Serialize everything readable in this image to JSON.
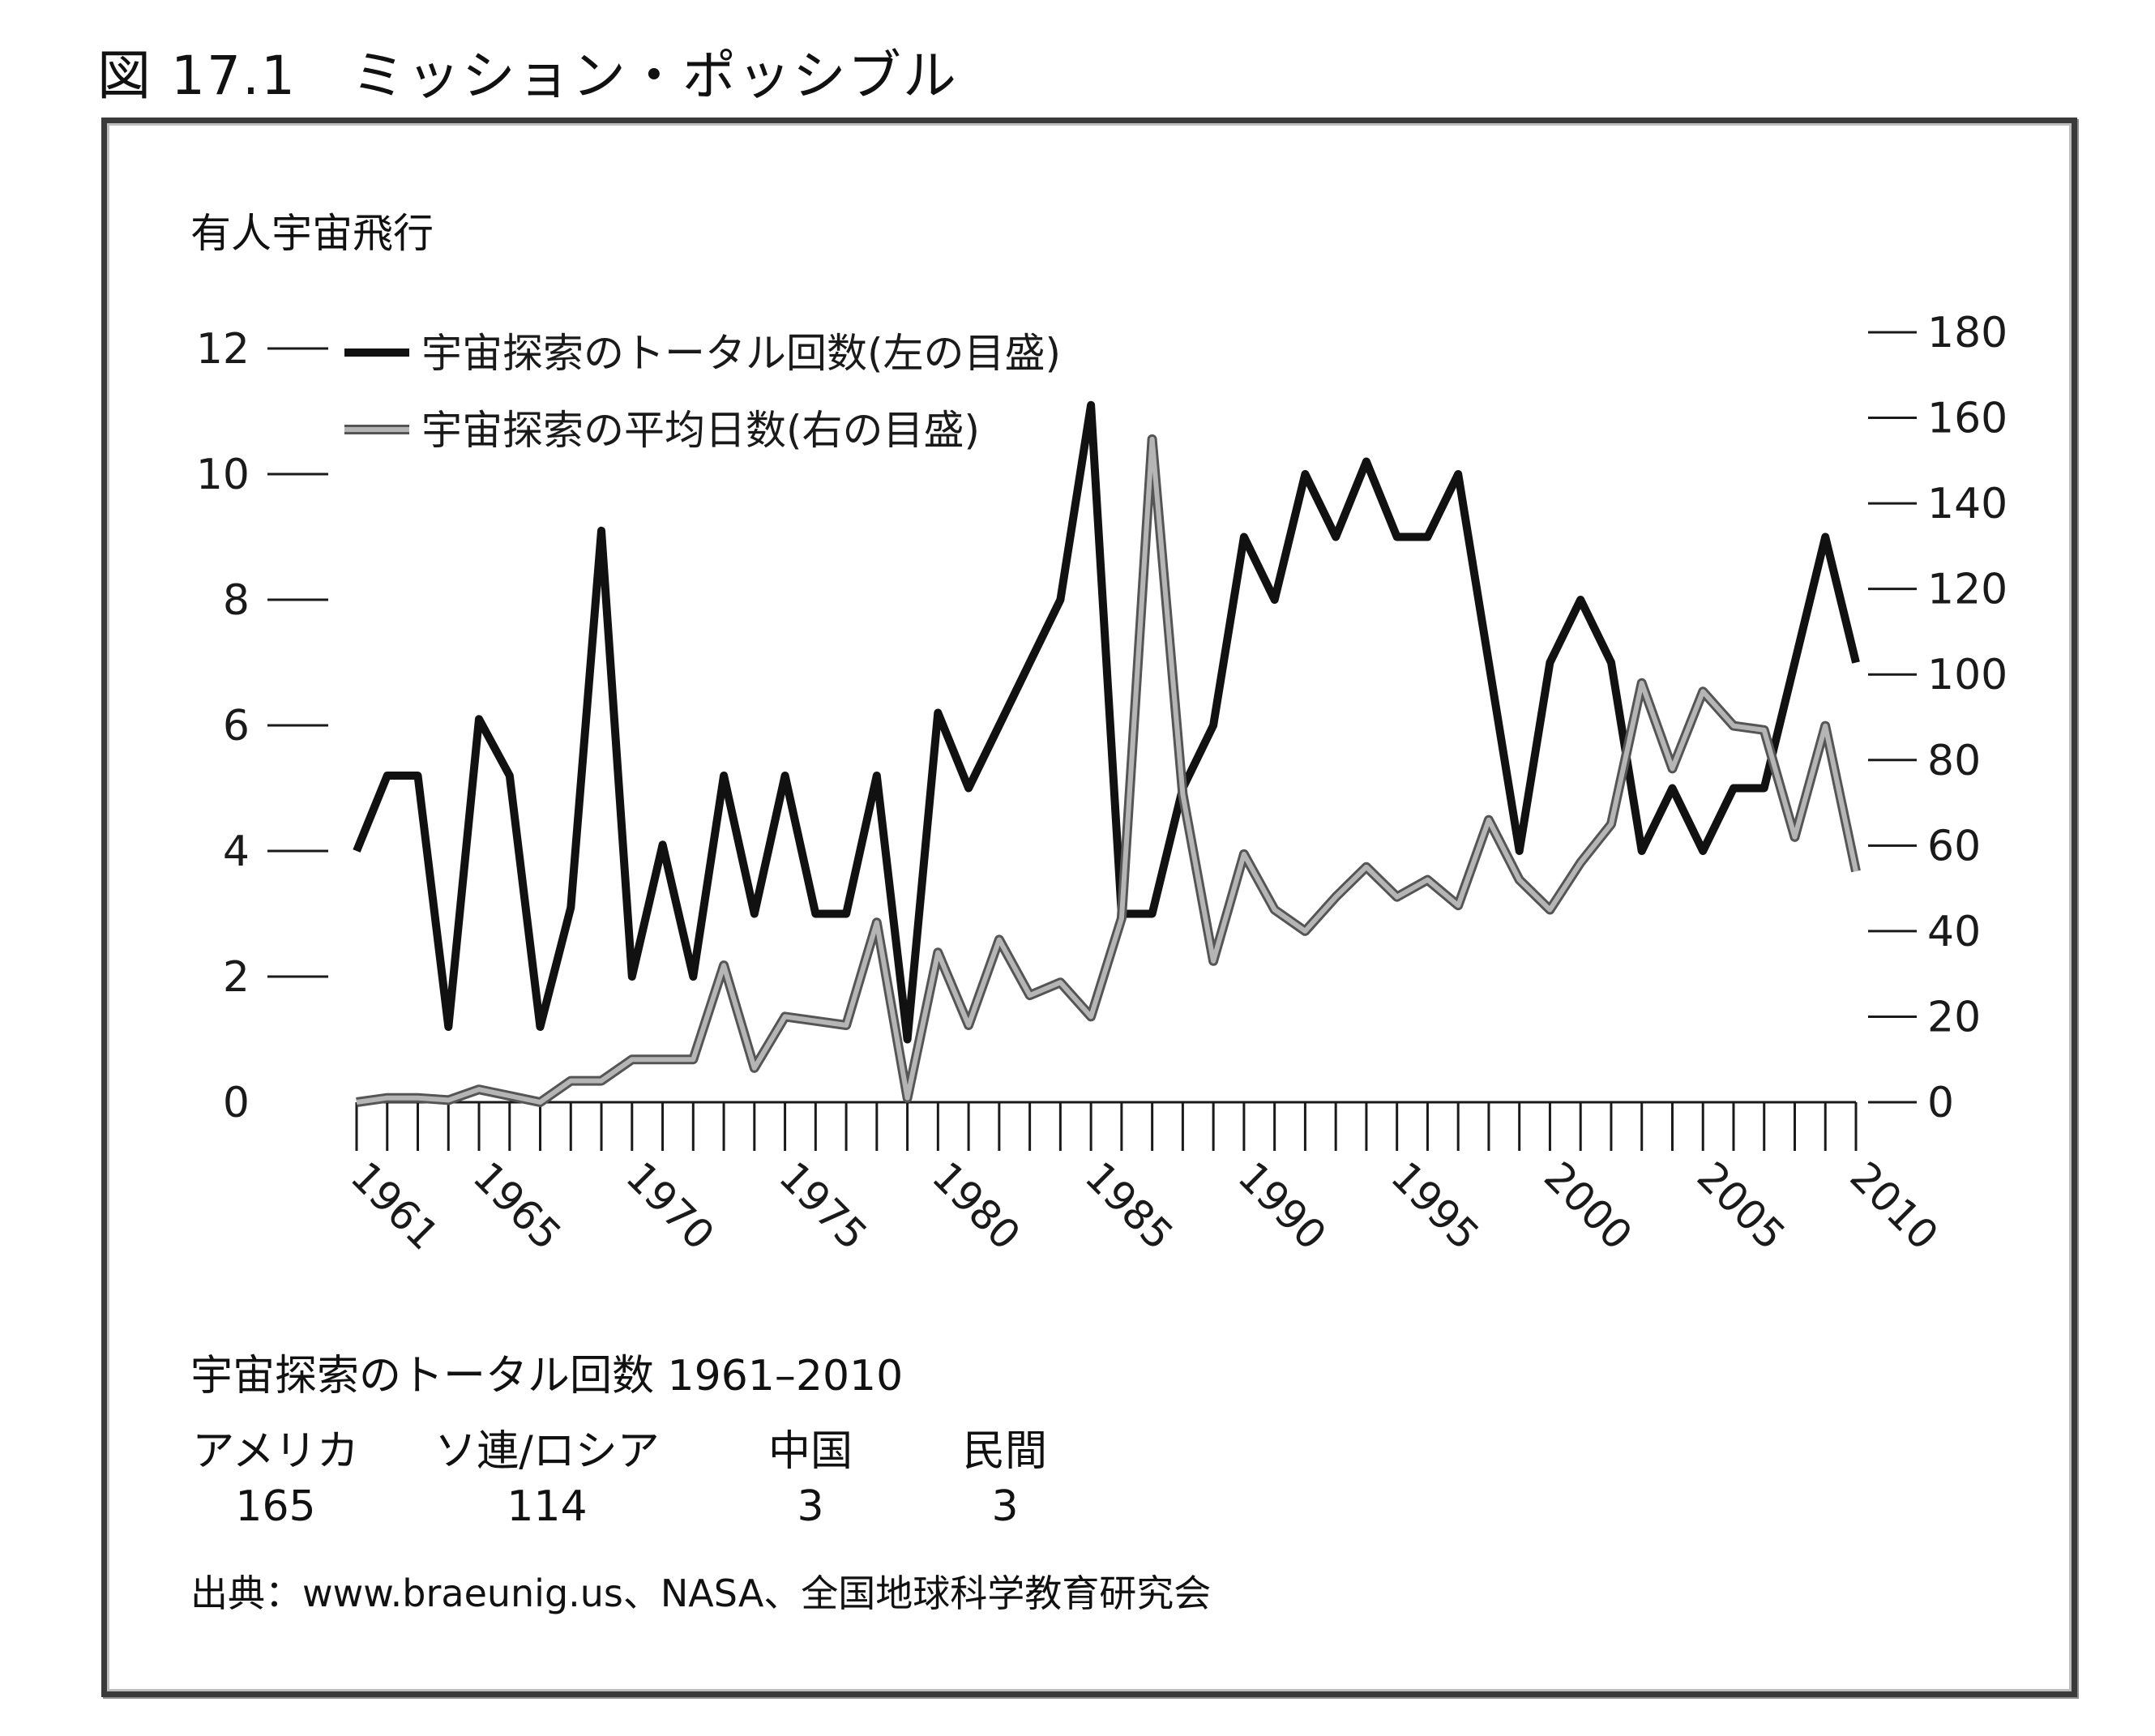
{
  "figure": {
    "title": "図 17.1　ミッション・ポッシブル",
    "heading": "有人宇宙飛行"
  },
  "chart_data": {
    "type": "line",
    "title": "有人宇宙飛行",
    "x": [
      1961,
      1962,
      1963,
      1964,
      1965,
      1966,
      1967,
      1968,
      1969,
      1970,
      1971,
      1972,
      1973,
      1974,
      1975,
      1976,
      1977,
      1978,
      1979,
      1980,
      1981,
      1982,
      1983,
      1984,
      1985,
      1986,
      1987,
      1988,
      1989,
      1990,
      1991,
      1992,
      1993,
      1994,
      1995,
      1996,
      1997,
      1998,
      1999,
      2000,
      2001,
      2002,
      2003,
      2004,
      2005,
      2006,
      2007,
      2008,
      2009,
      2010
    ],
    "x_tick_labels": [
      "1961",
      "1965",
      "1970",
      "1975",
      "1980",
      "1985",
      "1990",
      "1995",
      "2000",
      "2005",
      "2010"
    ],
    "y_left": {
      "ticks": [
        0,
        2,
        4,
        6,
        8,
        10,
        12
      ],
      "range": [
        0,
        12
      ]
    },
    "y_right": {
      "ticks": [
        0,
        20,
        40,
        60,
        80,
        100,
        120,
        140,
        160,
        180
      ],
      "range": [
        0,
        180
      ]
    },
    "grid": false,
    "legend_position": "top-left",
    "series": [
      {
        "name": "宇宙探索のトータル回数(左の目盛)",
        "axis": "left",
        "color": "#111111",
        "values": [
          4.0,
          5.2,
          5.2,
          1.2,
          6.1,
          5.2,
          1.2,
          3.1,
          9.1,
          2.0,
          4.1,
          2.0,
          5.2,
          3.0,
          5.2,
          3.0,
          3.0,
          5.2,
          1.0,
          6.2,
          5.0,
          6.0,
          7.0,
          8.0,
          11.1,
          3.0,
          3.0,
          5.0,
          6.0,
          9.0,
          8.0,
          10.0,
          9.0,
          10.2,
          9.0,
          9.0,
          10.0,
          7.0,
          4.0,
          7.0,
          8.0,
          7.0,
          4.0,
          5.0,
          4.0,
          5.0,
          5.0,
          7.0,
          9.0,
          7.0
        ]
      },
      {
        "name": "宇宙探索の平均日数(右の目盛)",
        "axis": "right",
        "color": "#8c8c8c",
        "values": [
          0,
          1,
          1,
          0.5,
          3,
          1.5,
          0,
          5,
          5,
          10,
          10,
          10,
          32,
          8,
          20,
          19,
          18,
          42,
          1,
          35,
          18,
          38,
          25,
          28,
          20,
          43,
          155,
          72,
          33,
          58,
          45,
          40,
          48,
          55,
          48,
          52,
          46,
          66,
          52,
          45,
          56,
          65,
          98,
          78,
          96,
          88,
          87,
          62,
          88,
          54
        ]
      }
    ]
  },
  "totals": {
    "title": "宇宙探索のトータル回数 1961–2010",
    "columns": [
      {
        "label": "アメリカ",
        "value": "165"
      },
      {
        "label": "ソ連/ロシア",
        "value": "114"
      },
      {
        "label": "中国",
        "value": "3"
      },
      {
        "label": "民間",
        "value": "3"
      }
    ]
  },
  "source": "出典：www.braeunig.us、NASA、全国地球科学教育研究会"
}
